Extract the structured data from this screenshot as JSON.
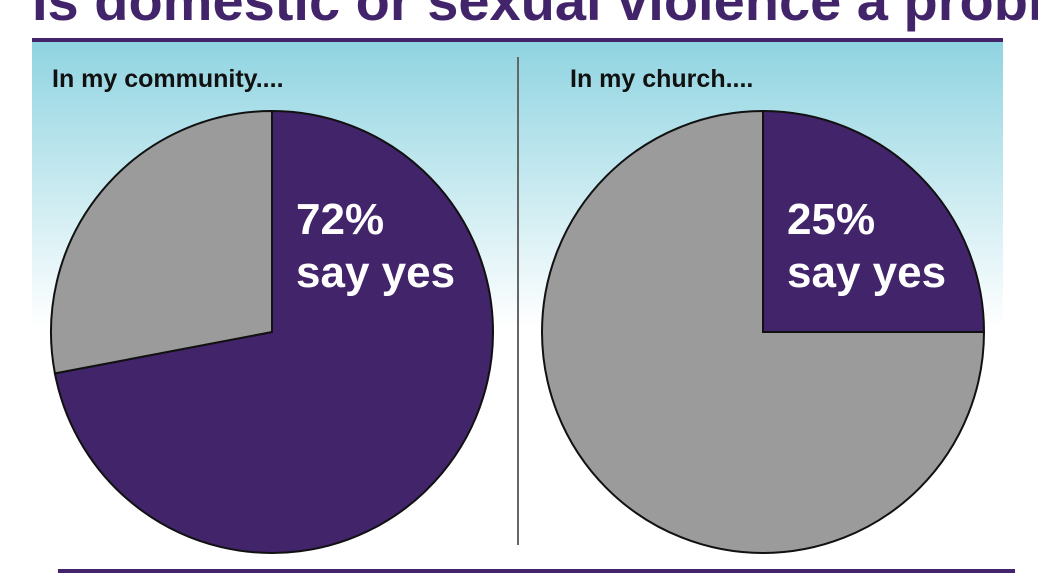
{
  "title": "Is domestic or sexual violence a problem?",
  "chart_data": [
    {
      "type": "pie",
      "subtitle": "In my community....",
      "values": [
        72,
        28
      ],
      "value_labels": [
        "72%",
        null
      ],
      "annotation": "say yes",
      "colors": [
        "#42246a",
        "#9b9b9b"
      ]
    },
    {
      "type": "pie",
      "subtitle": "In my church....",
      "values": [
        25,
        75
      ],
      "value_labels": [
        "25%",
        null
      ],
      "annotation": "say yes",
      "colors": [
        "#42246a",
        "#9b9b9b"
      ]
    }
  ]
}
